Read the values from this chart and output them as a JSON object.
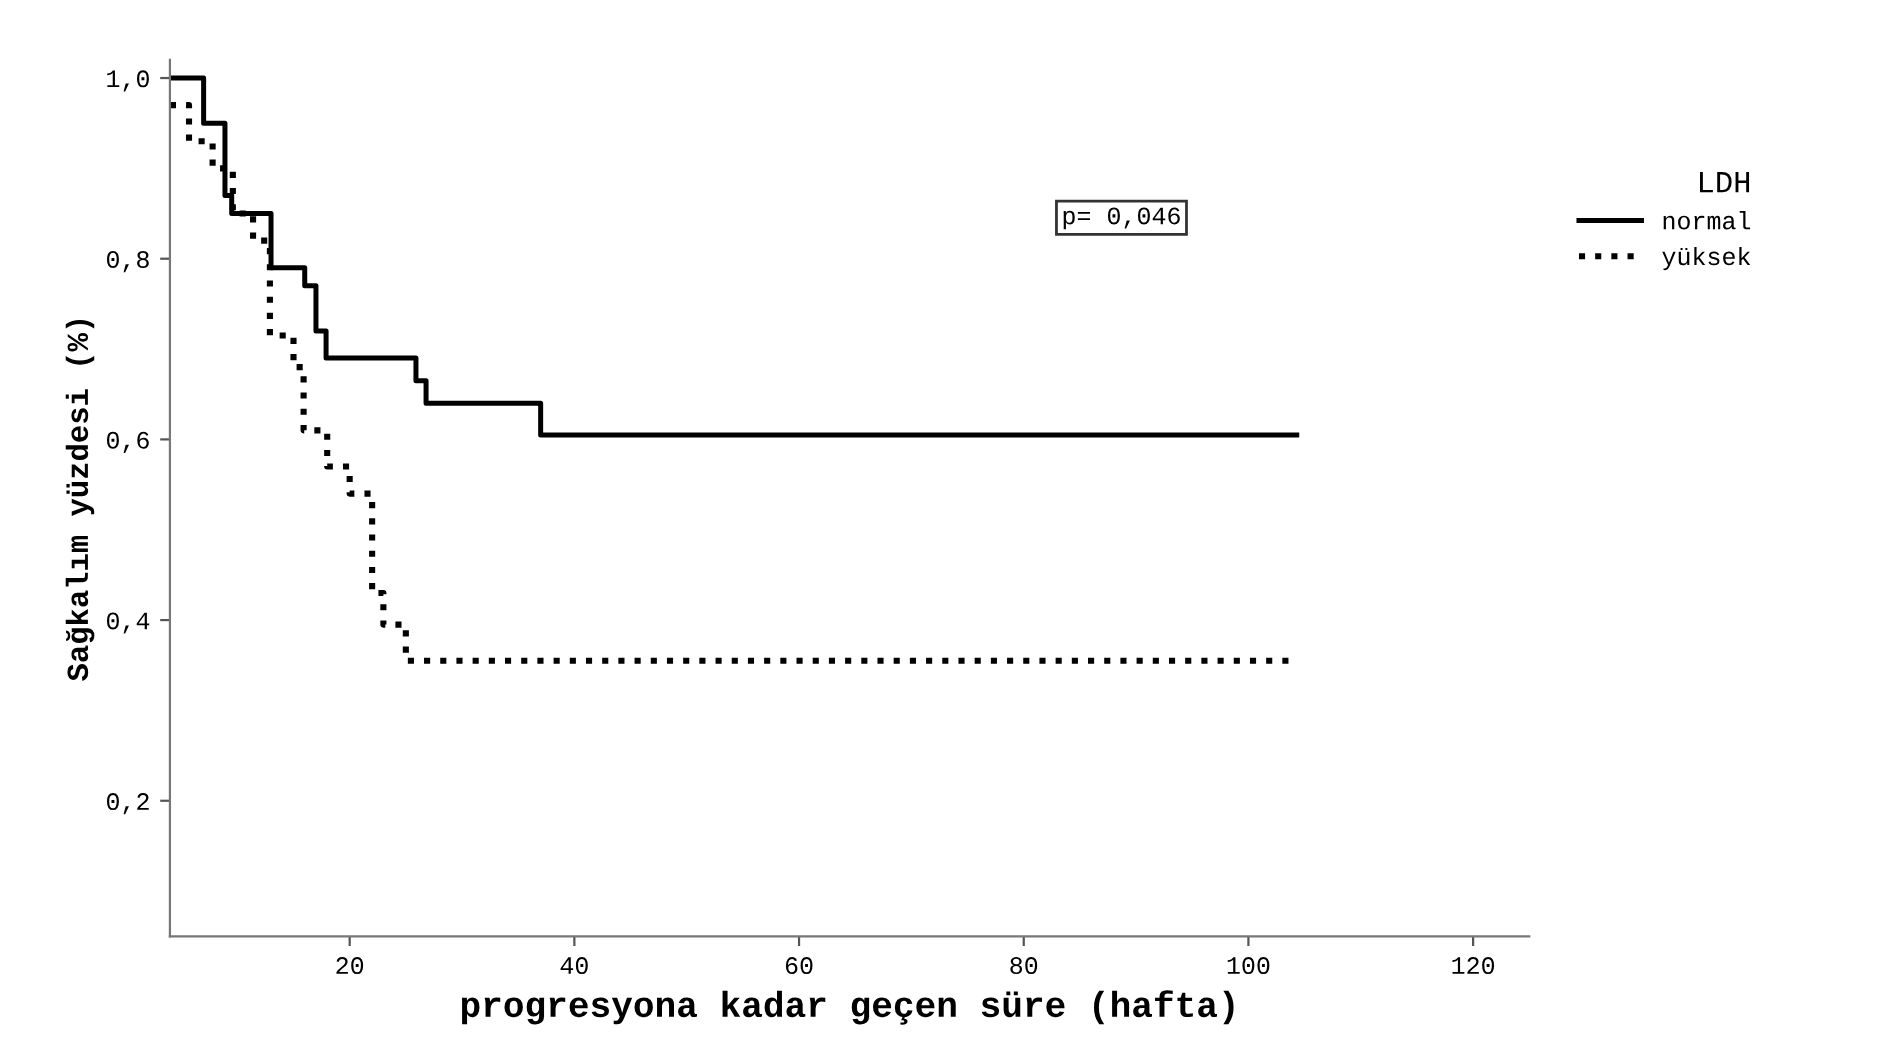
{
  "chart_data": {
    "type": "step",
    "xlabel": "progresyona kadar geçen süre (hafta)",
    "ylabel": "Sağkalım yüzdesi (%)",
    "legend_title": "LDH",
    "legend": "right",
    "annotations": [
      "p= 0,046"
    ],
    "xlim": [
      4,
      125
    ],
    "ylim": [
      0.05,
      1.02
    ],
    "xticks": [
      20,
      40,
      60,
      80,
      100,
      120
    ],
    "yticks": [
      {
        "value": 0.2,
        "label": "0,2"
      },
      {
        "value": 0.4,
        "label": "0,4"
      },
      {
        "value": 0.6,
        "label": "0,6"
      },
      {
        "value": 0.8,
        "label": "0,8"
      },
      {
        "value": 1.0,
        "label": "1,0"
      }
    ],
    "grid": false,
    "series": [
      {
        "name": "normal",
        "color": "#000000",
        "line_style": "solid",
        "x": [
          4,
          7.0,
          8.9,
          9.5,
          13.0,
          16.0,
          17.0,
          17.9,
          25.9,
          26.8,
          37.0,
          104.3
        ],
        "values": [
          1.0,
          0.95,
          0.87,
          0.85,
          0.79,
          0.77,
          0.72,
          0.69,
          0.665,
          0.64,
          0.605,
          0.605
        ]
      },
      {
        "name": "yüksek",
        "color": "#000000",
        "line_style": "dotted",
        "x": [
          4,
          5.7,
          7.8,
          9.6,
          11.4,
          12.9,
          15.0,
          15.9,
          18.0,
          20.0,
          22.0,
          23.0,
          25.0,
          104.3
        ],
        "values": [
          0.97,
          0.93,
          0.9,
          0.85,
          0.82,
          0.715,
          0.68,
          0.61,
          0.57,
          0.54,
          0.43,
          0.395,
          0.355,
          0.355
        ]
      }
    ]
  }
}
